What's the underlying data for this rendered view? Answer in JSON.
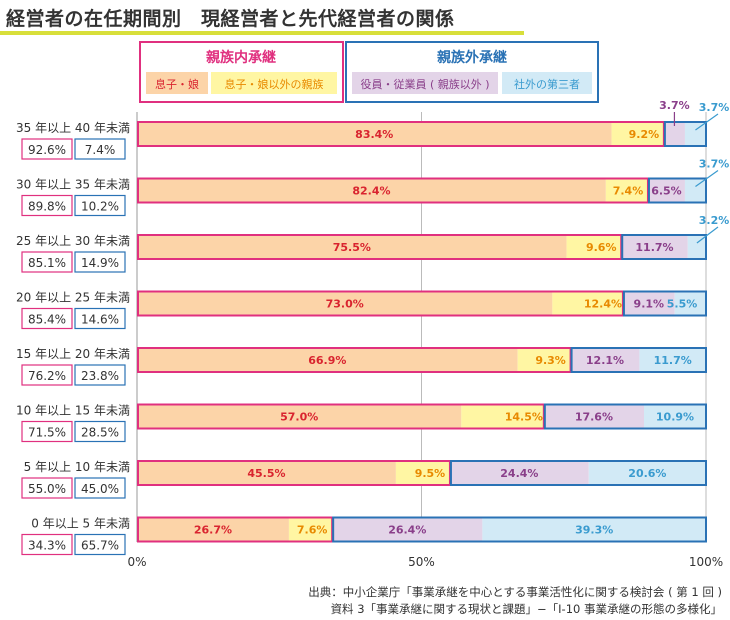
{
  "title": "経営者の在任期間別　現経営者と先代経営者の関係",
  "legend": {
    "internal_title": "親族内承継",
    "external_title": "親族外承継",
    "internal_items": [
      "息子・娘",
      "息子・娘以外の親族"
    ],
    "external_items": [
      "役員・従業員 ( 親族以外 )",
      "社外の第三者"
    ]
  },
  "colors": {
    "son_daughter": "#fcd4a8",
    "other_relative": "#fff6a3",
    "employee": "#e3d4e8",
    "third_party": "#d2eaf6",
    "internal_border": "#e0307f",
    "external_border": "#2a72b5",
    "internal_text": "#d9242f",
    "employee_text": "#8a3f8a",
    "third_party_text": "#3a9bcf",
    "relative_text": "#e88a00"
  },
  "chart_data": {
    "type": "bar",
    "orientation": "horizontal",
    "stacked": true,
    "categories": [
      "35 年以上 40 年未満",
      "30 年以上 35 年未満",
      "25 年以上 30 年未満",
      "20 年以上 25 年未満",
      "15 年以上 20 年未満",
      "10 年以上 15 年未満",
      "5 年以上 10 年未満",
      "0 年以上 5 年未満"
    ],
    "series": [
      {
        "name": "息子・娘",
        "values": [
          83.4,
          82.4,
          75.5,
          73.0,
          66.9,
          57.0,
          45.5,
          26.7
        ]
      },
      {
        "name": "息子・娘以外の親族",
        "values": [
          9.2,
          7.4,
          9.6,
          12.4,
          9.3,
          14.5,
          9.5,
          7.6
        ]
      },
      {
        "name": "役員・従業員 ( 親族以外 )",
        "values": [
          3.7,
          6.5,
          11.7,
          9.1,
          12.1,
          17.6,
          24.4,
          26.4
        ]
      },
      {
        "name": "社外の第三者",
        "values": [
          3.7,
          3.7,
          3.2,
          5.5,
          11.7,
          10.9,
          20.6,
          39.3
        ]
      }
    ],
    "internal_totals": [
      "92.6%",
      "89.8%",
      "85.1%",
      "85.4%",
      "76.2%",
      "71.5%",
      "55.0%",
      "34.3%"
    ],
    "external_totals": [
      "7.4%",
      "10.2%",
      "14.9%",
      "14.6%",
      "23.8%",
      "28.5%",
      "45.0%",
      "65.7%"
    ],
    "xlim": [
      0,
      100
    ],
    "xticks": [
      "0%",
      "50%",
      "100%"
    ],
    "unit": "%"
  },
  "source": {
    "line1": "出典：中小企業庁「事業承継を中心とする事業活性化に関する検討会 ( 第 1 回 )",
    "line2": "資料 3「事業承継に関する現状と課題」−「Ⅰ-10 事業承継の形態の多様化」"
  }
}
